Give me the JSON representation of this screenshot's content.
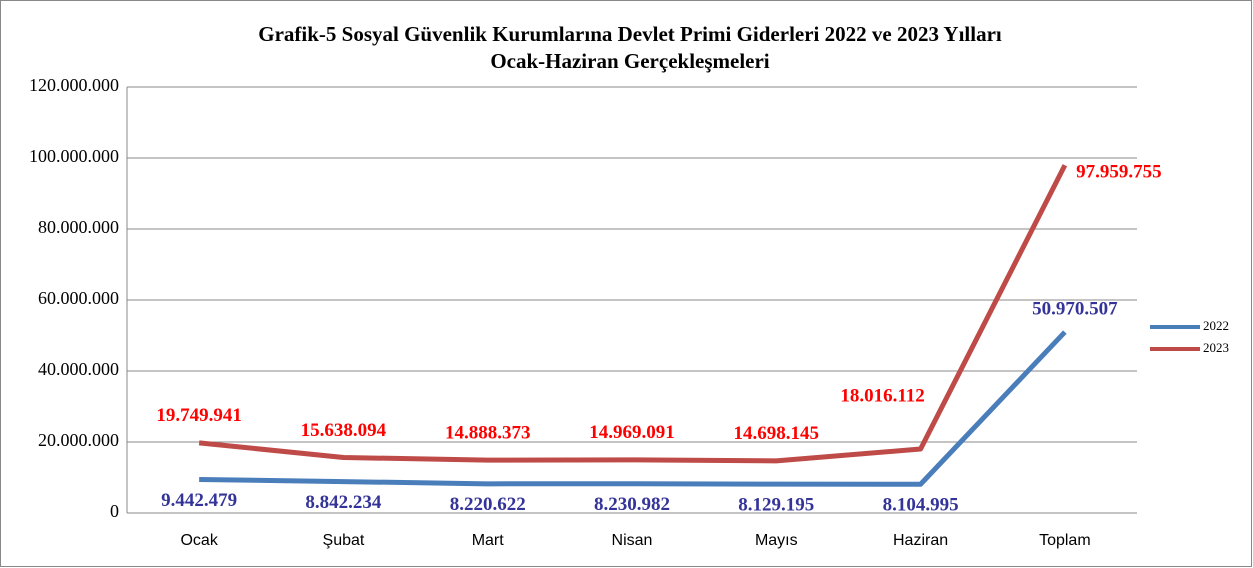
{
  "chart_data": {
    "type": "line",
    "title": [
      "Grafik-5 Sosyal Güvenlik Kurumlarına Devlet Primi Giderleri 2022 ve 2023 Yılları",
      "Ocak-Haziran Gerçekleşmeleri"
    ],
    "categories": [
      "Ocak",
      "Şubat",
      "Mart",
      "Nisan",
      "Mayıs",
      "Haziran",
      "Toplam"
    ],
    "series": [
      {
        "name": "2022",
        "color": "#4a7ebb",
        "label_color": "#333399",
        "values": [
          9442479,
          8842234,
          8220622,
          8230982,
          8129195,
          8104995,
          50970507
        ],
        "value_labels": [
          "9.442.479",
          "8.842.234",
          "8.220.622",
          "8.230.982",
          "8.129.195",
          "8.104.995",
          "50.970.507"
        ]
      },
      {
        "name": "2023",
        "color": "#be4b48",
        "label_color": "#ff0000",
        "values": [
          19749941,
          15638094,
          14888373,
          14969091,
          14698145,
          18016112,
          97959755
        ],
        "value_labels": [
          "19.749.941",
          "15.638.094",
          "14.888.373",
          "14.969.091",
          "14.698.145",
          "18.016.112",
          "97.959.755"
        ]
      }
    ],
    "ylim": [
      0,
      120000000
    ],
    "yticks": [
      0,
      {
        "value": 20000000,
        "label": "20.000.000"
      },
      {
        "value": 40000000,
        "label": "40.000.000"
      },
      {
        "value": 60000000,
        "label": "60.000.000"
      },
      {
        "value": 80000000,
        "label": "80.000.000"
      },
      {
        "value": 100000000,
        "label": "100.000.000"
      },
      {
        "value": 120000000,
        "label": "120.000.000"
      }
    ],
    "grid": true,
    "legend": "right"
  }
}
